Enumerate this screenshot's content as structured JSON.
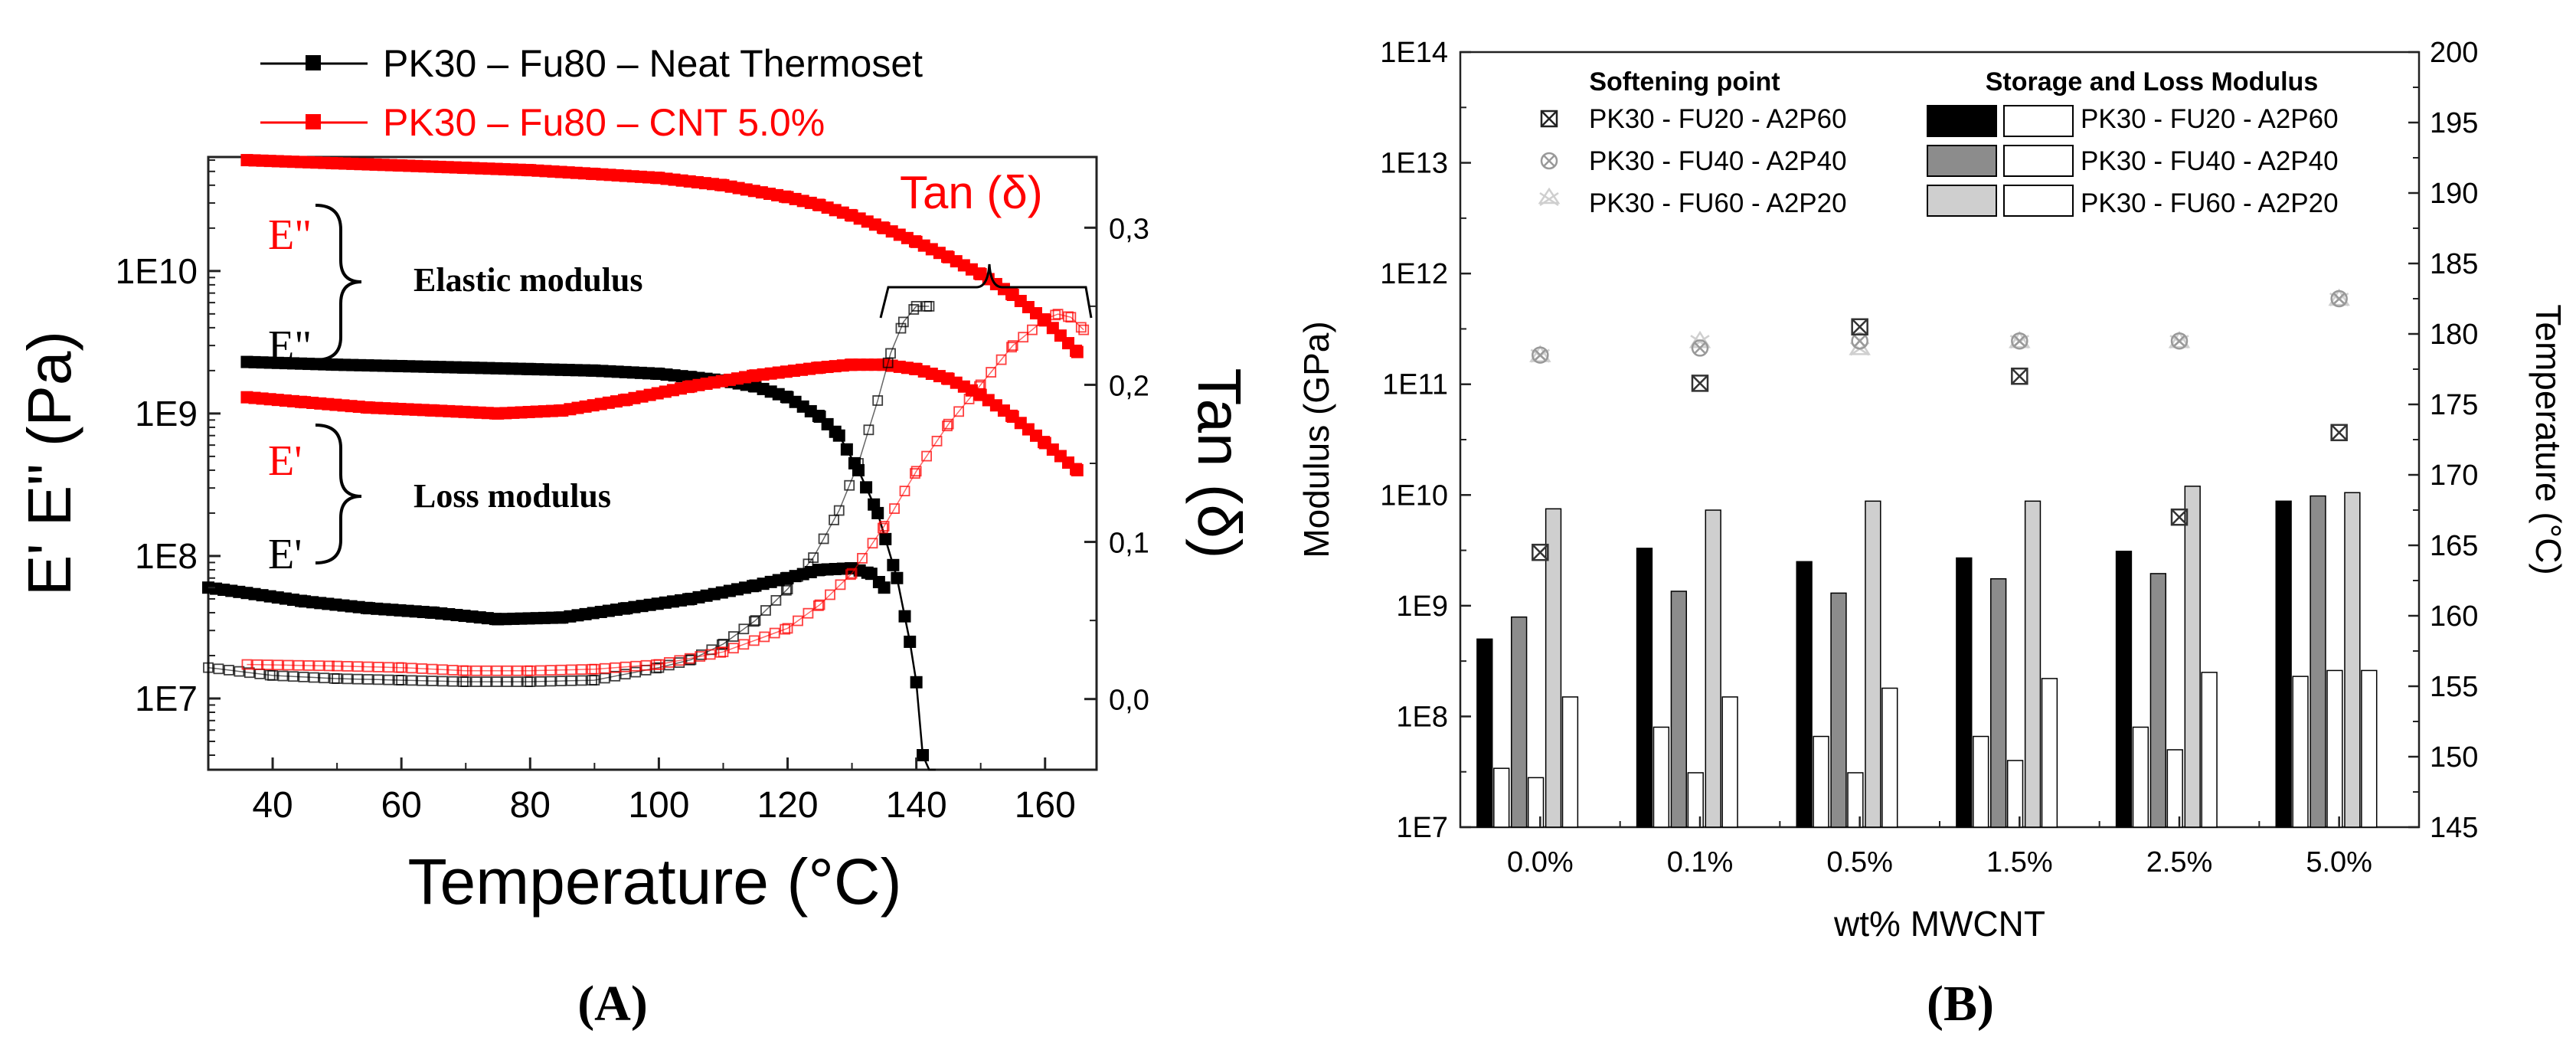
{
  "panel_labels": {
    "a": "(A)",
    "b": "(B)"
  },
  "colors": {
    "neat": "#000000",
    "cnt": "#ff0000",
    "bar_black": "#000000",
    "bar_dark": "#8c8c8c",
    "bar_light": "#cfcfcf",
    "bar_white": "#ffffff"
  },
  "chart_data": [
    {
      "type": "line",
      "panel": "A",
      "xlabel": "Temperature (°C)",
      "ylabel": "E' E\" (Pa)",
      "y2label": "Tan (δ)",
      "xlim": [
        30,
        168
      ],
      "ylim_log10": [
        6.5,
        10.8
      ],
      "y2lim": [
        -0.045,
        0.345
      ],
      "yscale": "log",
      "x_ticks": [
        "40",
        "60",
        "80",
        "100",
        "120",
        "140",
        "160"
      ],
      "y_ticks": [
        "1E7",
        "1E8",
        "1E9",
        "1E10"
      ],
      "y2_ticks": [
        "0,0",
        "0,1",
        "0,2",
        "0,3"
      ],
      "legend_position": "top-left",
      "legend": [
        {
          "label": "PK30 – Fu80 – Neat Thermoset",
          "color": "#000000"
        },
        {
          "label": "PK30 – Fu80 – CNT 5.0%",
          "color": "#ff0000"
        }
      ],
      "annotations": {
        "tan_label": "Tan (δ)",
        "e2_red": "E\"",
        "e2_black": "E\"",
        "e1_red": "E'",
        "e1_black": "E'",
        "elastic": "Elastic modulus",
        "loss": "Loss modulus"
      },
      "series": [
        {
          "name": "PK30 – Fu80 – Neat Thermoset",
          "quantity": "E\"",
          "axis": "left",
          "color": "#000000",
          "x": [
            36,
            50,
            60,
            70,
            80,
            90,
            100,
            105,
            110,
            115,
            120,
            125,
            128,
            131,
            134,
            137,
            139,
            140,
            141,
            142,
            143
          ],
          "y": [
            2300000000.0,
            2200000000.0,
            2150000000.0,
            2100000000.0,
            2050000000.0,
            2000000000.0,
            1900000000.0,
            1800000000.0,
            1700000000.0,
            1550000000.0,
            1300000000.0,
            950000000.0,
            700000000.0,
            400000000.0,
            200000000.0,
            70000000.0,
            25000000.0,
            13000000.0,
            4000000.0,
            1000000.0,
            180000.0
          ]
        },
        {
          "name": "PK30 – Fu80 – Neat Thermoset",
          "quantity": "E'",
          "axis": "left",
          "color": "#000000",
          "x": [
            30,
            36,
            45,
            55,
            65,
            75,
            85,
            95,
            105,
            115,
            120,
            125,
            130,
            133,
            135
          ],
          "y": [
            60000000.0,
            55000000.0,
            48000000.0,
            43000000.0,
            40000000.0,
            36000000.0,
            37000000.0,
            43000000.0,
            50000000.0,
            62000000.0,
            70000000.0,
            80000000.0,
            82000000.0,
            75000000.0,
            60000000.0
          ]
        },
        {
          "name": "PK30 – Fu80 – CNT 5.0%",
          "quantity": "E\"",
          "axis": "left",
          "color": "#ff0000",
          "x": [
            36,
            50,
            60,
            70,
            80,
            90,
            100,
            110,
            120,
            125,
            130,
            135,
            140,
            145,
            150,
            155,
            160,
            165
          ],
          "y": [
            60000000000.0,
            57000000000.0,
            55000000000.0,
            53000000000.0,
            51000000000.0,
            48000000000.0,
            45000000000.0,
            40000000000.0,
            33000000000.0,
            29000000000.0,
            24500000000.0,
            20000000000.0,
            16000000000.0,
            12500000000.0,
            9500000000.0,
            6800000000.0,
            4500000000.0,
            2700000000.0
          ]
        },
        {
          "name": "PK30 – Fu80 – CNT 5.0%",
          "quantity": "E'",
          "axis": "left",
          "color": "#ff0000",
          "x": [
            36,
            45,
            55,
            65,
            75,
            85,
            95,
            105,
            115,
            125,
            130,
            135,
            140,
            145,
            150,
            155,
            160,
            165
          ],
          "y": [
            1300000000.0,
            1200000000.0,
            1100000000.0,
            1050000000.0,
            1000000000.0,
            1050000000.0,
            1250000000.0,
            1550000000.0,
            1850000000.0,
            2100000000.0,
            2200000000.0,
            2200000000.0,
            2050000000.0,
            1750000000.0,
            1350000000.0,
            950000000.0,
            620000000.0,
            400000000.0
          ]
        },
        {
          "name": "PK30 – Fu80 – Neat Thermoset",
          "quantity": "Tan (δ)",
          "axis": "right",
          "color": "#000000",
          "marker": "open-square",
          "x": [
            30,
            40,
            50,
            60,
            70,
            80,
            90,
            100,
            105,
            110,
            115,
            120,
            124,
            128,
            131,
            134,
            136,
            138,
            140,
            142
          ],
          "y": [
            0.02,
            0.015,
            0.013,
            0.012,
            0.011,
            0.011,
            0.012,
            0.02,
            0.025,
            0.035,
            0.05,
            0.07,
            0.09,
            0.12,
            0.15,
            0.19,
            0.22,
            0.24,
            0.25,
            0.25
          ]
        },
        {
          "name": "PK30 – Fu80 – CNT 5.0%",
          "quantity": "Tan (δ)",
          "axis": "right",
          "color": "#ff0000",
          "marker": "open-square",
          "x": [
            36,
            50,
            60,
            70,
            80,
            90,
            100,
            110,
            120,
            125,
            130,
            135,
            140,
            145,
            150,
            155,
            158,
            160,
            162,
            164,
            166
          ],
          "y": [
            0.022,
            0.021,
            0.02,
            0.018,
            0.018,
            0.019,
            0.022,
            0.03,
            0.045,
            0.06,
            0.08,
            0.11,
            0.145,
            0.175,
            0.2,
            0.225,
            0.235,
            0.242,
            0.245,
            0.243,
            0.235
          ]
        }
      ]
    },
    {
      "type": "bar",
      "panel": "B",
      "xlabel": "wt% MWCNT",
      "ylabel": "Modulus (GPa)",
      "y2label": "Temperature (°C)",
      "categories": [
        "0.0%",
        "0.1%",
        "0.5%",
        "1.5%",
        "2.5%",
        "5.0%"
      ],
      "yscale": "log",
      "ylim": [
        10000000.0,
        100000000000000.0
      ],
      "y_ticks": [
        "1E7",
        "1E8",
        "1E9",
        "1E10",
        "1E11",
        "1E12",
        "1E13",
        "1E14"
      ],
      "y2lim": [
        145,
        200
      ],
      "y2_ticks": [
        "145",
        "150",
        "155",
        "160",
        "165",
        "170",
        "175",
        "180",
        "185",
        "190",
        "195",
        "200"
      ],
      "legend_position": "top",
      "legend": {
        "softening_title": "Softening point",
        "modulus_title": "Storage and Loss Modulus",
        "labels": [
          "PK30 - FU20 - A2P60",
          "PK30 - FU40 - A2P40",
          "PK30 - FU60 - A2P20"
        ]
      },
      "series": [
        {
          "name": "PK30 - FU20 - A2P60",
          "kind": "storage",
          "color": "#000000",
          "values": [
            500000000.0,
            3300000000.0,
            2500000000.0,
            2700000000.0,
            3100000000.0,
            8800000000.0
          ]
        },
        {
          "name": "PK30 - FU20 - A2P60",
          "kind": "loss",
          "color": "#ffffff",
          "values": [
            34000000.0,
            80000000.0,
            66000000.0,
            66000000.0,
            80000000.0,
            230000000.0
          ]
        },
        {
          "name": "PK30 - FU40 - A2P40",
          "kind": "storage",
          "color": "#8c8c8c",
          "values": [
            790000000.0,
            1350000000.0,
            1300000000.0,
            1750000000.0,
            1950000000.0,
            9800000000.0
          ]
        },
        {
          "name": "PK30 - FU40 - A2P40",
          "kind": "loss",
          "color": "#ffffff",
          "values": [
            28000000.0,
            31000000.0,
            31000000.0,
            40000000.0,
            50000000.0,
            260000000.0
          ]
        },
        {
          "name": "PK30 - FU60 - A2P20",
          "kind": "storage",
          "color": "#cfcfcf",
          "values": [
            7500000000.0,
            7300000000.0,
            8800000000.0,
            8800000000.0,
            12000000000.0,
            10500000000.0
          ]
        },
        {
          "name": "PK30 - FU60 - A2P20",
          "kind": "loss",
          "color": "#ffffff",
          "values": [
            150000000.0,
            150000000.0,
            180000000.0,
            220000000.0,
            250000000.0,
            260000000.0
          ]
        }
      ],
      "softening_point": [
        {
          "name": "PK30 - FU20 - A2P60",
          "values": [
            164.5,
            176.5,
            180.5,
            177,
            167,
            173
          ]
        },
        {
          "name": "PK30 - FU40 - A2P40",
          "values": [
            178.5,
            179,
            179.5,
            179.5,
            179.5,
            182.5
          ]
        },
        {
          "name": "PK30 - FU60 - A2P20",
          "values": [
            178.5,
            179.5,
            179,
            179.5,
            179.5,
            182.5
          ]
        }
      ]
    }
  ]
}
